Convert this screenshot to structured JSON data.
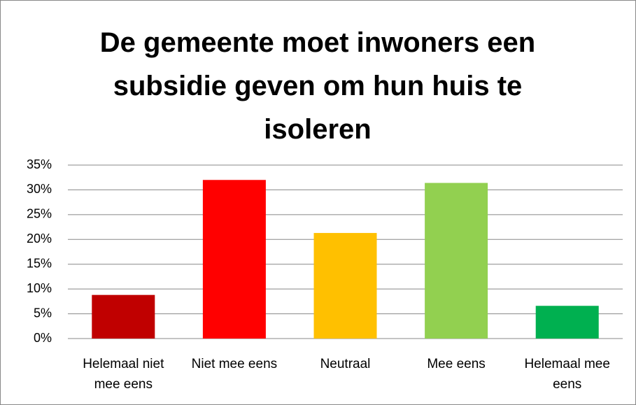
{
  "chart_data": {
    "type": "bar",
    "title": "De gemeente moet inwoners een subsidie geven om hun huis te isoleren",
    "categories": [
      "Helemaal niet mee eens",
      "Niet mee eens",
      "Neutraal",
      "Mee eens",
      "Helemaal mee eens"
    ],
    "values": [
      8.8,
      32,
      21.3,
      31.4,
      6.6
    ],
    "colors": [
      "#c00000",
      "#ff0000",
      "#ffc000",
      "#92d050",
      "#00b050"
    ],
    "ylim": [
      0,
      35
    ],
    "yticks": [
      {
        "value": 0,
        "label": "0%"
      },
      {
        "value": 5,
        "label": "5%"
      },
      {
        "value": 10,
        "label": "10%"
      },
      {
        "value": 15,
        "label": "15%"
      },
      {
        "value": 20,
        "label": "20%"
      },
      {
        "value": 25,
        "label": "25%"
      },
      {
        "value": 30,
        "label": "30%"
      },
      {
        "value": 35,
        "label": "35%"
      }
    ],
    "grid": true
  }
}
